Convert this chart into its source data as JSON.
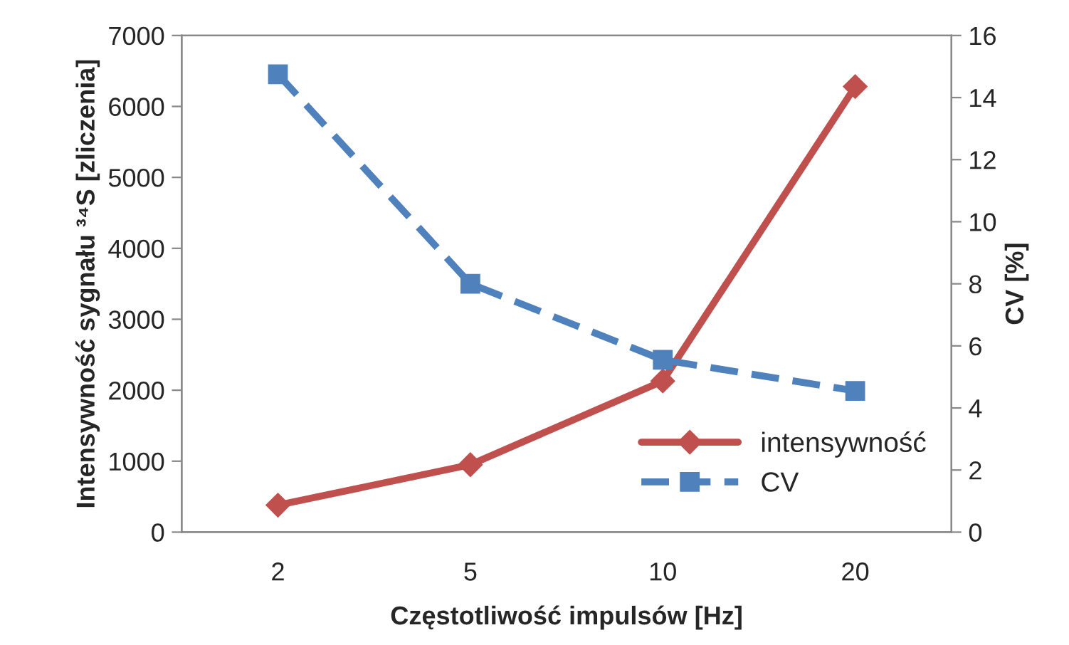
{
  "chart_data": {
    "type": "line",
    "xlabel": "Częstotliwość impulsów [Hz]",
    "ylabel": "Intensywność sygnału ³⁴S [zliczenia]",
    "y2label": "CV [%]",
    "categories": [
      "2",
      "5",
      "10",
      "20"
    ],
    "series": [
      {
        "name": "intensywność",
        "color": "#c0504d",
        "values": [
          380,
          950,
          2130,
          6280
        ],
        "marker": "diamond",
        "line_style": "solid"
      },
      {
        "name": "CV",
        "color": "#4f81bd",
        "values": [
          14.75,
          8.0,
          5.55,
          4.55
        ],
        "marker": "square",
        "line_style": "dashed",
        "axis": "y2"
      }
    ],
    "ylim": [
      0,
      7000
    ],
    "yticks": [
      0,
      1000,
      2000,
      3000,
      4000,
      5000,
      6000,
      7000
    ],
    "y2lim": [
      0,
      16
    ],
    "y2ticks": [
      0,
      2,
      4,
      6,
      8,
      10,
      12,
      14,
      16
    ],
    "grid": false,
    "legend": "bottom right"
  }
}
